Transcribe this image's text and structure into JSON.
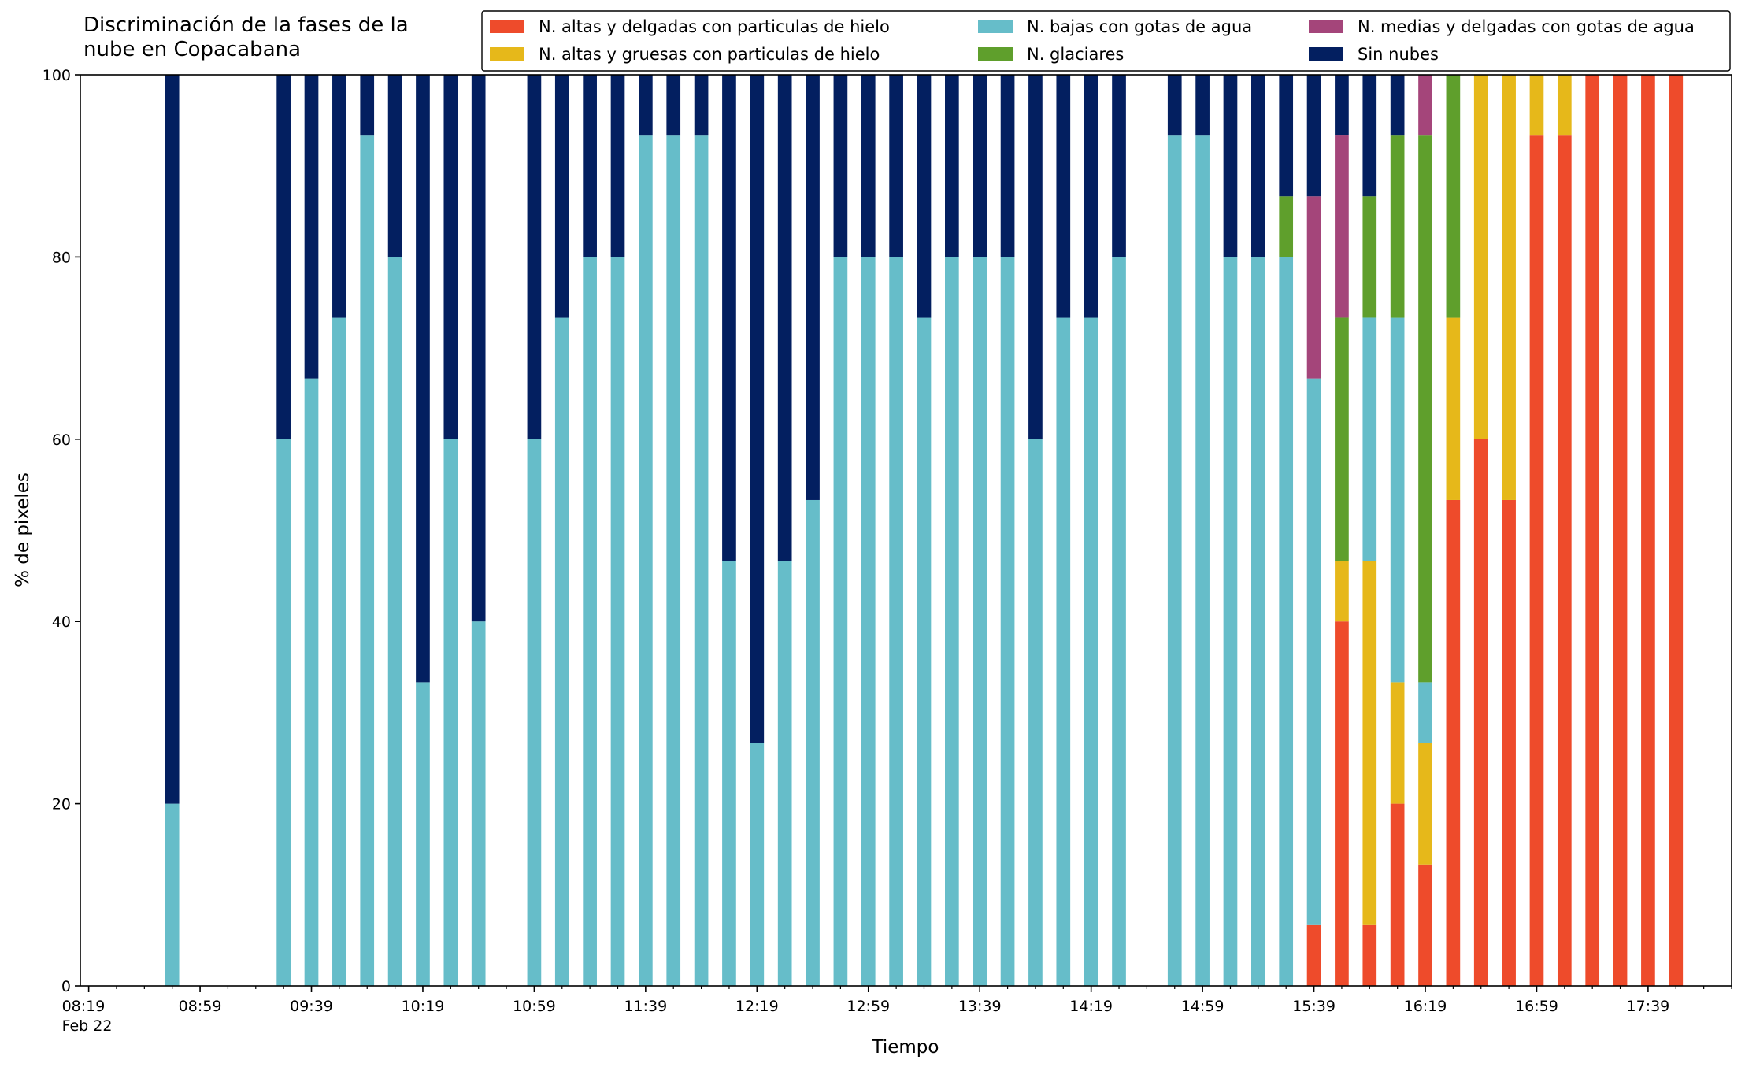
{
  "chart_data": {
    "type": "bar",
    "stacked": true,
    "title": "Discriminación de la fases de la\nnube en Copacabana",
    "xlabel": "Tiempo",
    "ylabel": "% de pixeles",
    "ylim": [
      0,
      100
    ],
    "xlim": [
      "08:16",
      "18:09"
    ],
    "yticks": [
      0,
      20,
      40,
      60,
      80,
      100
    ],
    "xticks": [
      {
        "time": "08:19",
        "label": "08:19\nFeb 22"
      },
      {
        "time": "08:59",
        "label": "08:59"
      },
      {
        "time": "09:39",
        "label": "09:39"
      },
      {
        "time": "10:19",
        "label": "10:19"
      },
      {
        "time": "10:59",
        "label": "10:59"
      },
      {
        "time": "11:39",
        "label": "11:39"
      },
      {
        "time": "12:19",
        "label": "12:19"
      },
      {
        "time": "12:59",
        "label": "12:59"
      },
      {
        "time": "13:39",
        "label": "13:39"
      },
      {
        "time": "14:19",
        "label": "14:19"
      },
      {
        "time": "14:59",
        "label": "14:59"
      },
      {
        "time": "15:39",
        "label": "15:39"
      },
      {
        "time": "16:19",
        "label": "16:19"
      },
      {
        "time": "16:59",
        "label": "16:59"
      },
      {
        "time": "17:39",
        "label": "17:39"
      }
    ],
    "minor_tick_interval_minutes": 10,
    "grid": false,
    "legend_position": "top-right",
    "legend_columns": 3,
    "series": [
      {
        "name": "N. altas y delgadas con particulas de hielo",
        "color": "#ee4b2b"
      },
      {
        "name": "N. altas y gruesas con particulas de hielo",
        "color": "#e6b81a"
      },
      {
        "name": "N. bajas con gotas de agua",
        "color": "#66bdc9"
      },
      {
        "name": "N. glaciares",
        "color": "#5f9f2c"
      },
      {
        "name": "N. medias y delgadas con gotas de agua",
        "color": "#a4457a"
      },
      {
        "name": "Sin nubes",
        "color": "#031f60"
      }
    ],
    "times": [
      "08:49",
      "09:29",
      "09:39",
      "09:49",
      "09:59",
      "10:09",
      "10:19",
      "10:29",
      "10:39",
      "10:59",
      "11:09",
      "11:19",
      "11:29",
      "11:39",
      "11:49",
      "11:59",
      "12:09",
      "12:19",
      "12:29",
      "12:39",
      "12:49",
      "12:59",
      "13:09",
      "13:19",
      "13:29",
      "13:39",
      "13:49",
      "13:59",
      "14:09",
      "14:19",
      "14:29",
      "14:49",
      "14:59",
      "15:09",
      "15:19",
      "15:29",
      "15:39",
      "15:49",
      "15:59",
      "16:09",
      "16:19",
      "16:29",
      "16:39",
      "16:49",
      "16:59",
      "17:09",
      "17:19",
      "17:29",
      "17:39",
      "17:49"
    ],
    "values": {
      "N. altas y delgadas con particulas de hielo": [
        0,
        0,
        0,
        0,
        0,
        0,
        0,
        0,
        0,
        0,
        0,
        0,
        0,
        0,
        0,
        0,
        0,
        0,
        0,
        0,
        0,
        0,
        0,
        0,
        0,
        0,
        0,
        0,
        0,
        0,
        0,
        0,
        0,
        0,
        0,
        0,
        6.67,
        40,
        6.67,
        20,
        13.33,
        53.33,
        60,
        53.33,
        93.33,
        93.33,
        100,
        100,
        100,
        100
      ],
      "N. altas y gruesas con particulas de hielo": [
        0,
        0,
        0,
        0,
        0,
        0,
        0,
        0,
        0,
        0,
        0,
        0,
        0,
        0,
        0,
        0,
        0,
        0,
        0,
        0,
        0,
        0,
        0,
        0,
        0,
        0,
        0,
        0,
        0,
        0,
        0,
        0,
        0,
        0,
        0,
        0,
        0,
        6.67,
        40,
        13.33,
        13.33,
        20,
        40,
        46.67,
        6.67,
        6.67,
        0,
        0,
        0,
        0
      ],
      "N. bajas con gotas de agua": [
        20,
        60,
        66.67,
        73.33,
        93.33,
        80,
        33.33,
        60,
        40,
        60,
        73.33,
        80,
        80,
        93.33,
        93.33,
        93.33,
        46.67,
        26.67,
        46.67,
        53.33,
        80,
        80,
        80,
        73.33,
        80,
        80,
        80,
        60,
        73.33,
        73.33,
        80,
        93.33,
        93.33,
        80,
        80,
        80,
        60,
        0,
        26.67,
        40,
        6.67,
        0,
        0,
        0,
        0,
        0,
        0,
        0,
        0,
        0
      ],
      "N. glaciares": [
        0,
        0,
        0,
        0,
        0,
        0,
        0,
        0,
        0,
        0,
        0,
        0,
        0,
        0,
        0,
        0,
        0,
        0,
        0,
        0,
        0,
        0,
        0,
        0,
        0,
        0,
        0,
        0,
        0,
        0,
        0,
        0,
        0,
        0,
        0,
        6.67,
        0,
        26.67,
        13.33,
        20,
        60,
        26.67,
        0,
        0,
        0,
        0,
        0,
        0,
        0,
        0
      ],
      "N. medias y delgadas con gotas de agua": [
        0,
        0,
        0,
        0,
        0,
        0,
        0,
        0,
        0,
        0,
        0,
        0,
        0,
        0,
        0,
        0,
        0,
        0,
        0,
        0,
        0,
        0,
        0,
        0,
        0,
        0,
        0,
        0,
        0,
        0,
        0,
        0,
        0,
        0,
        0,
        0,
        20,
        20,
        0,
        0,
        6.67,
        0,
        0,
        0,
        0,
        0,
        0,
        0,
        0,
        0
      ],
      "Sin nubes": [
        80,
        40,
        33.33,
        26.67,
        6.67,
        20,
        66.67,
        40,
        60,
        40,
        26.67,
        20,
        20,
        6.67,
        6.67,
        6.67,
        53.33,
        73.33,
        53.33,
        46.67,
        20,
        20,
        20,
        26.67,
        20,
        20,
        20,
        40,
        26.67,
        26.67,
        20,
        6.67,
        6.67,
        20,
        20,
        13.33,
        13.33,
        6.67,
        13.33,
        6.67,
        0,
        0,
        0,
        0,
        0,
        0,
        0,
        0,
        0,
        0
      ]
    }
  }
}
